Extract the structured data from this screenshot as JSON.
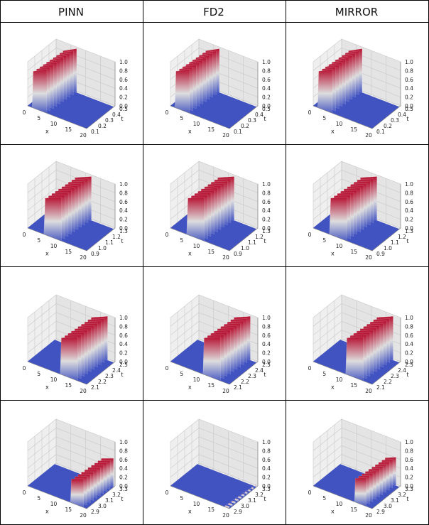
{
  "table": {
    "columns": [
      "PINN",
      "FD2",
      "MIRROR"
    ]
  },
  "colors": {
    "colormap": "coolwarm",
    "low": "#3b4cc0",
    "mid": "#dddddd",
    "high": "#b40426",
    "pane": "#ebebeb",
    "grid": "#c8c8c8"
  },
  "chart_data": [
    {
      "type": "surface3d",
      "model": "PINN",
      "row": 0,
      "xlabel": "x",
      "ylabel": "t",
      "zlabel": "",
      "x_ticks": [
        "0",
        "5",
        "10",
        "15",
        "20"
      ],
      "t_ticks": [
        "0.1",
        "0.2",
        "0.3",
        "0.4",
        "0.5"
      ],
      "z_ticks": [
        "0.0",
        "0.2",
        "0.4",
        "0.6",
        "0.8",
        "1.0"
      ],
      "xlim": [
        0,
        20
      ],
      "tlim": [
        0.1,
        0.5
      ],
      "zlim": [
        0,
        1
      ],
      "wave_x_start": 1.5,
      "wave_x_end": 6.5,
      "wave_amplitude": 1.0
    },
    {
      "type": "surface3d",
      "model": "FD2",
      "row": 0,
      "xlabel": "x",
      "ylabel": "t",
      "zlabel": "",
      "x_ticks": [
        "0",
        "5",
        "10",
        "15",
        "20"
      ],
      "t_ticks": [
        "0.1",
        "0.2",
        "0.3",
        "0.4",
        "0.5"
      ],
      "z_ticks": [
        "0.0",
        "0.2",
        "0.4",
        "0.6",
        "0.8",
        "1.0"
      ],
      "xlim": [
        0,
        20
      ],
      "tlim": [
        0.1,
        0.5
      ],
      "zlim": [
        0,
        1
      ],
      "wave_x_start": 1.5,
      "wave_x_end": 6.5,
      "wave_amplitude": 1.0
    },
    {
      "type": "surface3d",
      "model": "MIRROR",
      "row": 0,
      "xlabel": "x",
      "ylabel": "t",
      "zlabel": "",
      "x_ticks": [
        "0",
        "5",
        "10",
        "15",
        "20"
      ],
      "t_ticks": [
        "0.1",
        "0.2",
        "0.3",
        "0.4",
        "0.5"
      ],
      "z_ticks": [
        "0.0",
        "0.2",
        "0.4",
        "0.6",
        "0.8",
        "1.0"
      ],
      "xlim": [
        0,
        20
      ],
      "tlim": [
        0.1,
        0.5
      ],
      "zlim": [
        0,
        1
      ],
      "wave_x_start": 1.5,
      "wave_x_end": 6.5,
      "wave_amplitude": 1.0
    },
    {
      "type": "surface3d",
      "model": "PINN",
      "row": 1,
      "xlabel": "x",
      "ylabel": "t",
      "zlabel": "",
      "x_ticks": [
        "0",
        "5",
        "10",
        "15",
        "20"
      ],
      "t_ticks": [
        "0.9",
        "1.0",
        "1.1",
        "1.2",
        "1.3"
      ],
      "z_ticks": [
        "0.0",
        "0.2",
        "0.4",
        "0.6",
        "0.8",
        "1.0"
      ],
      "xlim": [
        0,
        20
      ],
      "tlim": [
        0.9,
        1.3
      ],
      "zlim": [
        0,
        1
      ],
      "wave_x_start": 5.5,
      "wave_x_end": 11.5,
      "wave_amplitude": 1.0
    },
    {
      "type": "surface3d",
      "model": "FD2",
      "row": 1,
      "xlabel": "x",
      "ylabel": "t",
      "zlabel": "",
      "x_ticks": [
        "0",
        "5",
        "10",
        "15",
        "20"
      ],
      "t_ticks": [
        "0.9",
        "1.0",
        "1.1",
        "1.2",
        "1.3"
      ],
      "z_ticks": [
        "0.0",
        "0.2",
        "0.4",
        "0.6",
        "0.8",
        "1.0"
      ],
      "xlim": [
        0,
        20
      ],
      "tlim": [
        0.9,
        1.3
      ],
      "zlim": [
        0,
        1
      ],
      "wave_x_start": 5.5,
      "wave_x_end": 11.5,
      "wave_amplitude": 1.0
    },
    {
      "type": "surface3d",
      "model": "MIRROR",
      "row": 1,
      "xlabel": "x",
      "ylabel": "t",
      "zlabel": "",
      "x_ticks": [
        "0",
        "5",
        "10",
        "15",
        "20"
      ],
      "t_ticks": [
        "0.9",
        "1.0",
        "1.1",
        "1.2",
        "1.3"
      ],
      "z_ticks": [
        "0.0",
        "0.2",
        "0.4",
        "0.6",
        "0.8",
        "1.0"
      ],
      "xlim": [
        0,
        20
      ],
      "tlim": [
        0.9,
        1.3
      ],
      "zlim": [
        0,
        1
      ],
      "wave_x_start": 5.5,
      "wave_x_end": 11.5,
      "wave_amplitude": 1.0
    },
    {
      "type": "surface3d",
      "model": "PINN",
      "row": 2,
      "xlabel": "x",
      "ylabel": "t",
      "zlabel": "",
      "x_ticks": [
        "0",
        "5",
        "10",
        "15",
        "20"
      ],
      "t_ticks": [
        "2.1",
        "2.2",
        "2.3",
        "2.4",
        "2.5"
      ],
      "z_ticks": [
        "0.0",
        "0.2",
        "0.4",
        "0.6",
        "0.8",
        "1.0"
      ],
      "xlim": [
        0,
        20
      ],
      "tlim": [
        2.1,
        2.5
      ],
      "zlim": [
        0,
        1
      ],
      "wave_x_start": 11,
      "wave_x_end": 17,
      "wave_amplitude": 1.0
    },
    {
      "type": "surface3d",
      "model": "FD2",
      "row": 2,
      "xlabel": "x",
      "ylabel": "t",
      "zlabel": "",
      "x_ticks": [
        "0",
        "5",
        "10",
        "15",
        "20"
      ],
      "t_ticks": [
        "2.1",
        "2.2",
        "2.3",
        "2.4",
        "2.5"
      ],
      "z_ticks": [
        "0.0",
        "0.2",
        "0.4",
        "0.6",
        "0.8",
        "1.0"
      ],
      "xlim": [
        0,
        20
      ],
      "tlim": [
        2.1,
        2.5
      ],
      "zlim": [
        0,
        1
      ],
      "wave_x_start": 11,
      "wave_x_end": 17,
      "wave_amplitude": 1.0
    },
    {
      "type": "surface3d",
      "model": "MIRROR",
      "row": 2,
      "xlabel": "x",
      "ylabel": "t",
      "zlabel": "",
      "x_ticks": [
        "0",
        "5",
        "10",
        "15",
        "20"
      ],
      "t_ticks": [
        "2.1",
        "2.2",
        "2.3",
        "2.4",
        "2.5"
      ],
      "z_ticks": [
        "0.0",
        "0.2",
        "0.4",
        "0.6",
        "0.8",
        "1.0"
      ],
      "xlim": [
        0,
        20
      ],
      "tlim": [
        2.1,
        2.5
      ],
      "zlim": [
        0,
        1
      ],
      "wave_x_start": 11,
      "wave_x_end": 17,
      "wave_amplitude": 1.0
    },
    {
      "type": "surface3d",
      "model": "PINN",
      "row": 3,
      "xlabel": "x",
      "ylabel": "t",
      "zlabel": "",
      "x_ticks": [
        "0",
        "5",
        "10",
        "15",
        "20"
      ],
      "t_ticks": [
        "2.9",
        "3.0",
        "3.1",
        "3.2",
        "3.3"
      ],
      "z_ticks": [
        "0.0",
        "0.2",
        "0.4",
        "0.6",
        "0.8",
        "1.0"
      ],
      "xlim": [
        0,
        20
      ],
      "tlim": [
        2.9,
        3.3
      ],
      "zlim": [
        0,
        1
      ],
      "wave_x_start": 14.5,
      "wave_x_end": 19,
      "wave_amplitude": 0.65
    },
    {
      "type": "surface3d",
      "model": "FD2",
      "row": 3,
      "xlabel": "x",
      "ylabel": "t",
      "zlabel": "",
      "x_ticks": [
        "0",
        "5",
        "10",
        "15",
        "20"
      ],
      "t_ticks": [
        "2.9",
        "3.0",
        "3.1",
        "3.2",
        "3.3"
      ],
      "z_ticks": [
        "0.0",
        "0.2",
        "0.4",
        "0.6",
        "0.8",
        "1.0"
      ],
      "xlim": [
        0,
        20
      ],
      "tlim": [
        2.9,
        3.3
      ],
      "zlim": [
        0,
        1
      ],
      "wave_x_start": 18.5,
      "wave_x_end": 20,
      "wave_amplitude": 0.05
    },
    {
      "type": "surface3d",
      "model": "MIRROR",
      "row": 3,
      "xlabel": "x",
      "ylabel": "t",
      "zlabel": "",
      "x_ticks": [
        "0",
        "5",
        "10",
        "15",
        "20"
      ],
      "t_ticks": [
        "2.9",
        "3.0",
        "3.1",
        "3.2",
        "3.3"
      ],
      "z_ticks": [
        "0.0",
        "0.2",
        "0.4",
        "0.6",
        "0.8",
        "1.0"
      ],
      "xlim": [
        0,
        20
      ],
      "tlim": [
        2.9,
        3.3
      ],
      "zlim": [
        0,
        1
      ],
      "wave_x_start": 14,
      "wave_x_end": 18,
      "wave_amplitude": 0.65
    }
  ]
}
